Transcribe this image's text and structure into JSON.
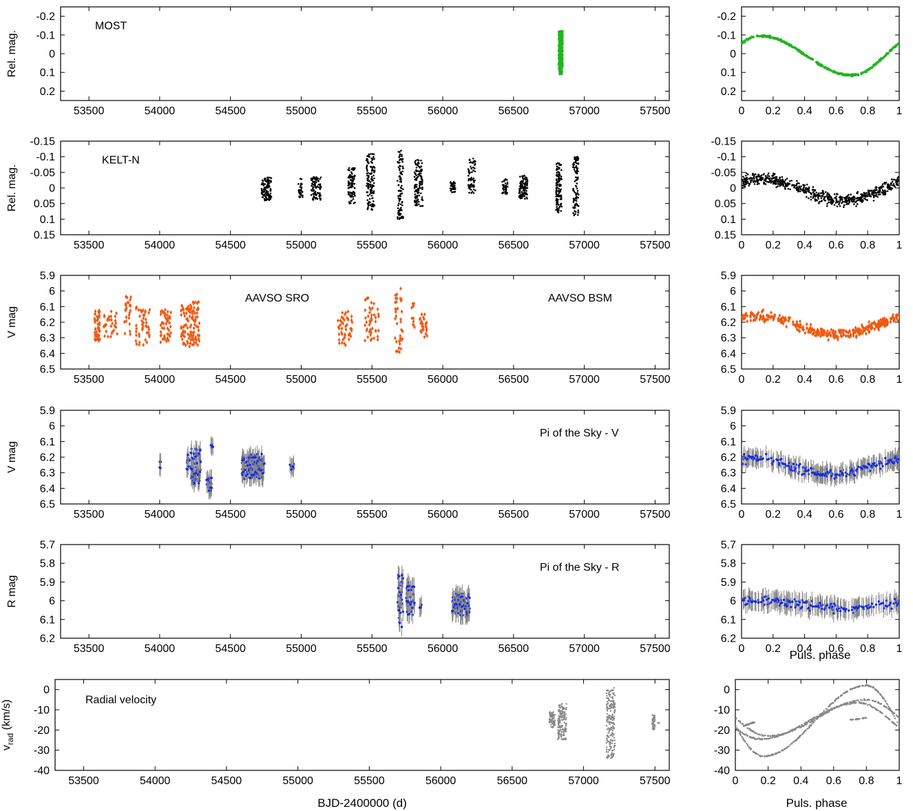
{
  "figure": {
    "time_xlabel": "BJD-2400000 (d)",
    "phase_xlabel": "Puls. phase"
  },
  "chart_data": [
    {
      "id": "most-time",
      "type": "scatter",
      "ylabel": "Rel. mag.",
      "annotations": [
        "MOST"
      ],
      "xlim": [
        53300,
        57600
      ],
      "xticks": [
        53500,
        54000,
        54500,
        55000,
        55500,
        56000,
        56500,
        57000,
        57500
      ],
      "ylim": [
        0.25,
        -0.25
      ],
      "yticks": [
        -0.2,
        -0.1,
        0,
        0.1,
        0.2
      ],
      "y_reversed": true,
      "color": "#22b422",
      "errorbars": false,
      "clusters": [
        {
          "x_from": 56820,
          "x_to": 56845,
          "y_from": -0.12,
          "y_to": 0.11,
          "n": 260
        }
      ]
    },
    {
      "id": "kelt-time",
      "type": "scatter",
      "ylabel": "Rel. mag.",
      "annotations": [
        "KELT-N"
      ],
      "xlim": [
        53300,
        57600
      ],
      "xticks": [
        53500,
        54000,
        54500,
        55000,
        55500,
        56000,
        56500,
        57000,
        57500
      ],
      "ylim": [
        0.15,
        -0.15
      ],
      "yticks": [
        -0.15,
        -0.1,
        -0.05,
        0,
        0.05,
        0.1,
        0.15
      ],
      "y_reversed": true,
      "color": "#000000",
      "errorbars": false,
      "clusters": [
        {
          "x_from": 54720,
          "x_to": 54790,
          "y_from": -0.035,
          "y_to": 0.04,
          "n": 120
        },
        {
          "x_from": 54980,
          "x_to": 55010,
          "y_from": -0.03,
          "y_to": 0.03,
          "n": 30
        },
        {
          "x_from": 55070,
          "x_to": 55140,
          "y_from": -0.035,
          "y_to": 0.04,
          "n": 100
        },
        {
          "x_from": 55330,
          "x_to": 55380,
          "y_from": -0.065,
          "y_to": 0.05,
          "n": 90
        },
        {
          "x_from": 55460,
          "x_to": 55520,
          "y_from": -0.11,
          "y_to": 0.07,
          "n": 130
        },
        {
          "x_from": 55680,
          "x_to": 55720,
          "y_from": -0.12,
          "y_to": 0.1,
          "n": 100
        },
        {
          "x_from": 55800,
          "x_to": 55860,
          "y_from": -0.09,
          "y_to": 0.06,
          "n": 130
        },
        {
          "x_from": 56050,
          "x_to": 56090,
          "y_from": -0.02,
          "y_to": 0.015,
          "n": 40
        },
        {
          "x_from": 56180,
          "x_to": 56230,
          "y_from": -0.095,
          "y_to": 0.02,
          "n": 70
        },
        {
          "x_from": 56420,
          "x_to": 56460,
          "y_from": -0.03,
          "y_to": 0.02,
          "n": 40
        },
        {
          "x_from": 56540,
          "x_to": 56600,
          "y_from": -0.04,
          "y_to": 0.035,
          "n": 100
        },
        {
          "x_from": 56800,
          "x_to": 56840,
          "y_from": -0.08,
          "y_to": 0.08,
          "n": 120
        },
        {
          "x_from": 56920,
          "x_to": 56960,
          "y_from": -0.1,
          "y_to": 0.09,
          "n": 100
        }
      ]
    },
    {
      "id": "aavso-time",
      "type": "scatter",
      "ylabel": "V mag",
      "annotations": [
        "AAVSO SRO",
        "AAVSO BSM"
      ],
      "xlim": [
        53300,
        57600
      ],
      "xticks": [
        53500,
        54000,
        54500,
        55000,
        55500,
        56000,
        56500,
        57000,
        57500
      ],
      "ylim": [
        6.5,
        5.9
      ],
      "yticks": [
        5.9,
        6,
        6.1,
        6.2,
        6.3,
        6.4,
        6.5
      ],
      "y_reversed": true,
      "color": "#f05a14",
      "errorbars": true,
      "error_color": "#f05a14",
      "error_size": 0.012,
      "clusters": [
        {
          "x_from": 53540,
          "x_to": 53580,
          "y_from": 6.12,
          "y_to": 6.33,
          "n": 50
        },
        {
          "x_from": 53600,
          "x_to": 53700,
          "y_from": 6.13,
          "y_to": 6.3,
          "n": 30
        },
        {
          "x_from": 53750,
          "x_to": 53800,
          "y_from": 6.02,
          "y_to": 6.32,
          "n": 25
        },
        {
          "x_from": 53830,
          "x_to": 53930,
          "y_from": 6.1,
          "y_to": 6.35,
          "n": 45
        },
        {
          "x_from": 54000,
          "x_to": 54080,
          "y_from": 6.12,
          "y_to": 6.33,
          "n": 50
        },
        {
          "x_from": 54150,
          "x_to": 54280,
          "y_from": 6.07,
          "y_to": 6.36,
          "n": 110
        },
        {
          "x_from": 55250,
          "x_to": 55370,
          "y_from": 6.12,
          "y_to": 6.35,
          "n": 45
        },
        {
          "x_from": 55450,
          "x_to": 55550,
          "y_from": 6.03,
          "y_to": 6.33,
          "n": 45
        },
        {
          "x_from": 55660,
          "x_to": 55720,
          "y_from": 5.96,
          "y_to": 6.41,
          "n": 35
        },
        {
          "x_from": 55780,
          "x_to": 55800,
          "y_from": 6.08,
          "y_to": 6.24,
          "n": 10
        },
        {
          "x_from": 55830,
          "x_to": 55890,
          "y_from": 6.13,
          "y_to": 6.3,
          "n": 25
        }
      ]
    },
    {
      "id": "pisky-v-time",
      "type": "scatter",
      "ylabel": "V mag",
      "annotations": [
        "Pi of the Sky - V"
      ],
      "xlim": [
        53300,
        57600
      ],
      "xticks": [
        53500,
        54000,
        54500,
        55000,
        55500,
        56000,
        56500,
        57000,
        57500
      ],
      "ylim": [
        6.5,
        5.9
      ],
      "yticks": [
        5.9,
        6,
        6.1,
        6.2,
        6.3,
        6.4,
        6.5
      ],
      "y_reversed": true,
      "color": "#1428e6",
      "errorbars": true,
      "error_color": "#888888",
      "error_size": 0.055,
      "clusters": [
        {
          "x_from": 53995,
          "x_to": 54010,
          "y_from": 6.22,
          "y_to": 6.27,
          "n": 6
        },
        {
          "x_from": 54190,
          "x_to": 54210,
          "y_from": 6.18,
          "y_to": 6.28,
          "n": 10
        },
        {
          "x_from": 54220,
          "x_to": 54290,
          "y_from": 6.14,
          "y_to": 6.38,
          "n": 60
        },
        {
          "x_from": 54330,
          "x_to": 54370,
          "y_from": 6.33,
          "y_to": 6.42,
          "n": 20
        },
        {
          "x_from": 54360,
          "x_to": 54380,
          "y_from": 6.12,
          "y_to": 6.14,
          "n": 6
        },
        {
          "x_from": 54580,
          "x_to": 54740,
          "y_from": 6.18,
          "y_to": 6.34,
          "n": 130
        },
        {
          "x_from": 54920,
          "x_to": 54950,
          "y_from": 6.24,
          "y_to": 6.28,
          "n": 10
        }
      ]
    },
    {
      "id": "pisky-r-time",
      "type": "scatter",
      "ylabel": "R mag",
      "annotations": [
        "Pi of the Sky - R"
      ],
      "xlim": [
        53300,
        57600
      ],
      "xticks": [
        53500,
        54000,
        54500,
        55000,
        55500,
        56000,
        56500,
        57000,
        57500
      ],
      "ylim": [
        6.2,
        5.7
      ],
      "yticks": [
        5.7,
        5.8,
        5.9,
        6,
        6.1,
        6.2
      ],
      "y_reversed": true,
      "color": "#1428e6",
      "errorbars": true,
      "error_color": "#888888",
      "error_size": 0.05,
      "clusters": [
        {
          "x_from": 55680,
          "x_to": 55720,
          "y_from": 5.83,
          "y_to": 6.15,
          "n": 35
        },
        {
          "x_from": 55740,
          "x_to": 55800,
          "y_from": 5.9,
          "y_to": 6.08,
          "n": 35
        },
        {
          "x_from": 55835,
          "x_to": 55850,
          "y_from": 6.02,
          "y_to": 6.04,
          "n": 4
        },
        {
          "x_from": 56060,
          "x_to": 56190,
          "y_from": 5.96,
          "y_to": 6.08,
          "n": 90
        }
      ]
    },
    {
      "id": "rv-time",
      "type": "scatter",
      "ylabel": "v_rad (km/s)",
      "annotations": [
        "Radial velocity"
      ],
      "xlim": [
        53300,
        57600
      ],
      "xticks": [
        53500,
        54000,
        54500,
        55000,
        55500,
        56000,
        56500,
        57000,
        57500
      ],
      "ylim": [
        -40,
        5
      ],
      "yticks": [
        -40,
        -30,
        -20,
        -10,
        0
      ],
      "y_reversed": false,
      "color": "#888888",
      "errorbars": false,
      "clusters": [
        {
          "x_from": 56760,
          "x_to": 56800,
          "y_from": -19,
          "y_to": -11,
          "n": 80
        },
        {
          "x_from": 56820,
          "x_to": 56880,
          "y_from": -25,
          "y_to": -7,
          "n": 160
        },
        {
          "x_from": 57160,
          "x_to": 57220,
          "y_from": -34,
          "y_to": 1,
          "n": 220
        },
        {
          "x_from": 57480,
          "x_to": 57500,
          "y_from": -20,
          "y_to": -12,
          "n": 40
        },
        {
          "x_from": 57520,
          "x_to": 57530,
          "y_from": -17,
          "y_to": -16,
          "n": 4
        }
      ]
    },
    {
      "id": "most-phase",
      "type": "scatter",
      "xlim": [
        0,
        1
      ],
      "xticks": [
        0,
        0.2,
        0.4,
        0.6,
        0.8,
        1
      ],
      "ylim": [
        0.25,
        -0.25
      ],
      "yticks": [
        -0.2,
        -0.1,
        0,
        0.1,
        0.2
      ],
      "y_reversed": true,
      "color": "#22b422",
      "errorbars": false,
      "curves": [
        {
          "mean": 0.01,
          "amp": 0.105,
          "peak_phase": 0.12,
          "trough_phase": 0.7,
          "scatter": 0.006,
          "n": 260
        }
      ]
    },
    {
      "id": "kelt-phase",
      "type": "scatter",
      "xlim": [
        0,
        1
      ],
      "xticks": [
        0,
        0.2,
        0.4,
        0.6,
        0.8,
        1
      ],
      "ylim": [
        0.15,
        -0.15
      ],
      "yticks": [
        -0.15,
        -0.1,
        -0.05,
        0,
        0.05,
        0.1,
        0.15
      ],
      "y_reversed": true,
      "color": "#000000",
      "errorbars": false,
      "curves": [
        {
          "mean": 0.005,
          "amp": 0.035,
          "peak_phase": 0.12,
          "trough_phase": 0.65,
          "scatter": 0.028,
          "n": 650
        }
      ]
    },
    {
      "id": "aavso-phase",
      "type": "scatter",
      "xlim": [
        0,
        1
      ],
      "xticks": [
        0,
        0.2,
        0.4,
        0.6,
        0.8,
        1
      ],
      "ylim": [
        6.5,
        5.9
      ],
      "yticks": [
        5.9,
        6,
        6.1,
        6.2,
        6.3,
        6.4,
        6.5
      ],
      "y_reversed": true,
      "color": "#f05a14",
      "errorbars": true,
      "error_color": "#f05a14",
      "error_size": 0.012,
      "curves": [
        {
          "mean": 6.22,
          "amp": 0.06,
          "peak_phase": 0.1,
          "trough_phase": 0.6,
          "scatter": 0.045,
          "n": 340
        }
      ]
    },
    {
      "id": "pisky-v-phase",
      "type": "scatter",
      "xlim": [
        0,
        1
      ],
      "xticks": [
        0,
        0.2,
        0.4,
        0.6,
        0.8,
        1
      ],
      "ylim": [
        6.5,
        5.9
      ],
      "yticks": [
        5.9,
        6,
        6.1,
        6.2,
        6.3,
        6.4,
        6.5
      ],
      "y_reversed": true,
      "color": "#1428e6",
      "errorbars": true,
      "error_color": "#888888",
      "error_size": 0.055,
      "curves": [
        {
          "mean": 6.26,
          "amp": 0.05,
          "peak_phase": 0.08,
          "trough_phase": 0.55,
          "scatter": 0.04,
          "n": 240
        }
      ]
    },
    {
      "id": "pisky-r-phase",
      "type": "scatter",
      "xaxis_label": "Puls. phase",
      "xlim": [
        0,
        1
      ],
      "xticks": [
        0,
        0.2,
        0.4,
        0.6,
        0.8,
        1
      ],
      "ylim": [
        6.2,
        5.7
      ],
      "yticks": [
        5.7,
        5.8,
        5.9,
        6,
        6.1,
        6.2
      ],
      "y_reversed": true,
      "color": "#1428e6",
      "errorbars": true,
      "error_color": "#888888",
      "error_size": 0.05,
      "curves": [
        {
          "mean": 6.02,
          "amp": 0.02,
          "peak_phase": 0.15,
          "trough_phase": 0.65,
          "scatter": 0.035,
          "n": 180
        }
      ]
    },
    {
      "id": "rv-phase",
      "type": "scatter",
      "xaxis_label": "Puls. phase",
      "xlim": [
        0,
        1
      ],
      "xticks": [
        0,
        0.2,
        0.4,
        0.6,
        0.8,
        1
      ],
      "ylim": [
        -40,
        5
      ],
      "yticks": [
        -40,
        -30,
        -20,
        -10,
        0
      ],
      "y_reversed": false,
      "color": "#888888",
      "errorbars": false,
      "curves": [
        {
          "mean": -15.5,
          "amp": 17.5,
          "peak_phase": 0.8,
          "trough_phase": 0.17,
          "scatter": 0.5,
          "n": 320
        },
        {
          "mean": -15.5,
          "amp": 9,
          "peak_phase": 0.75,
          "trough_phase": 0.15,
          "scatter": 0.5,
          "n": 280
        },
        {
          "mean": -14,
          "amp": 9,
          "peak_phase": 0.8,
          "trough_phase": 0.2,
          "scatter": 0.5,
          "n": 260
        }
      ],
      "segments": [
        {
          "x_from": 0.05,
          "x_to": 0.12,
          "y_from": -18,
          "y_to": -16,
          "n": 50
        },
        {
          "x_from": 0.7,
          "x_to": 0.8,
          "y_from": -15,
          "y_to": -14,
          "n": 30
        }
      ]
    }
  ]
}
